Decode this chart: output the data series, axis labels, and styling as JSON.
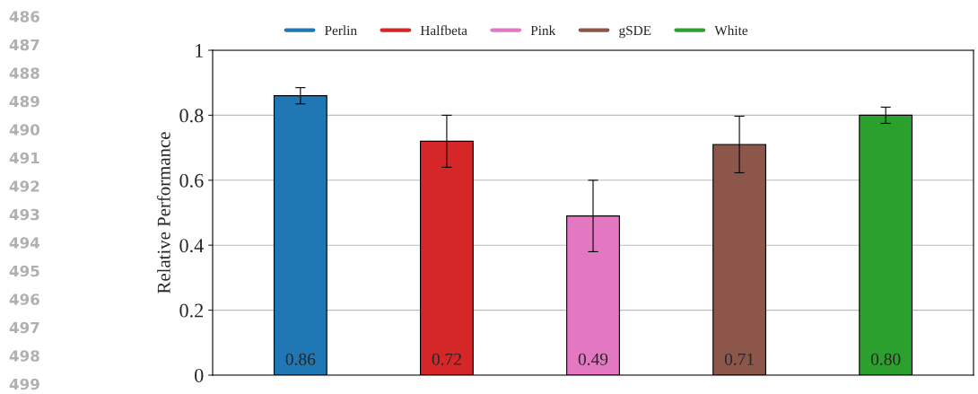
{
  "chart_data": {
    "type": "bar",
    "ylabel": "Relative Performance",
    "categories": [
      null,
      null,
      null,
      null,
      null
    ],
    "series": [
      {
        "name": "Perlin",
        "color": "#1f77b4",
        "values": [
          0.86,
          null,
          null,
          null,
          null
        ],
        "errors": [
          0.025,
          null,
          null,
          null,
          null
        ],
        "value_labels": [
          "0.86",
          null,
          null,
          null,
          null
        ]
      },
      {
        "name": "Halfbeta",
        "color": "#d62728",
        "values": [
          null,
          0.72,
          null,
          null,
          null
        ],
        "errors": [
          null,
          0.08,
          null,
          null,
          null
        ],
        "value_labels": [
          null,
          "0.72",
          null,
          null,
          null
        ]
      },
      {
        "name": "Pink",
        "color": "#e377c2",
        "values": [
          null,
          null,
          0.49,
          null,
          null
        ],
        "errors": [
          null,
          null,
          0.11,
          null,
          null
        ],
        "value_labels": [
          null,
          null,
          "0.49",
          null,
          null
        ]
      },
      {
        "name": "gSDE",
        "color": "#8c564b",
        "values": [
          null,
          null,
          null,
          0.71,
          null
        ],
        "errors": [
          null,
          null,
          null,
          0.087,
          null
        ],
        "value_labels": [
          null,
          null,
          null,
          "0.71",
          null
        ]
      },
      {
        "name": "White",
        "color": "#2ca02c",
        "values": [
          null,
          null,
          null,
          null,
          0.8
        ],
        "errors": [
          null,
          null,
          null,
          null,
          0.025
        ],
        "value_labels": [
          null,
          null,
          null,
          null,
          "0.80"
        ]
      }
    ],
    "ylim": [
      0,
      1
    ],
    "yticks": [
      0,
      0.2,
      0.4,
      0.6,
      0.8,
      1
    ],
    "grid": "y",
    "legend": "top",
    "annotations": [
      "486",
      "487",
      "488",
      "489",
      "490",
      "491",
      "492",
      "493",
      "494",
      "495",
      "496",
      "497",
      "498",
      "499"
    ]
  }
}
